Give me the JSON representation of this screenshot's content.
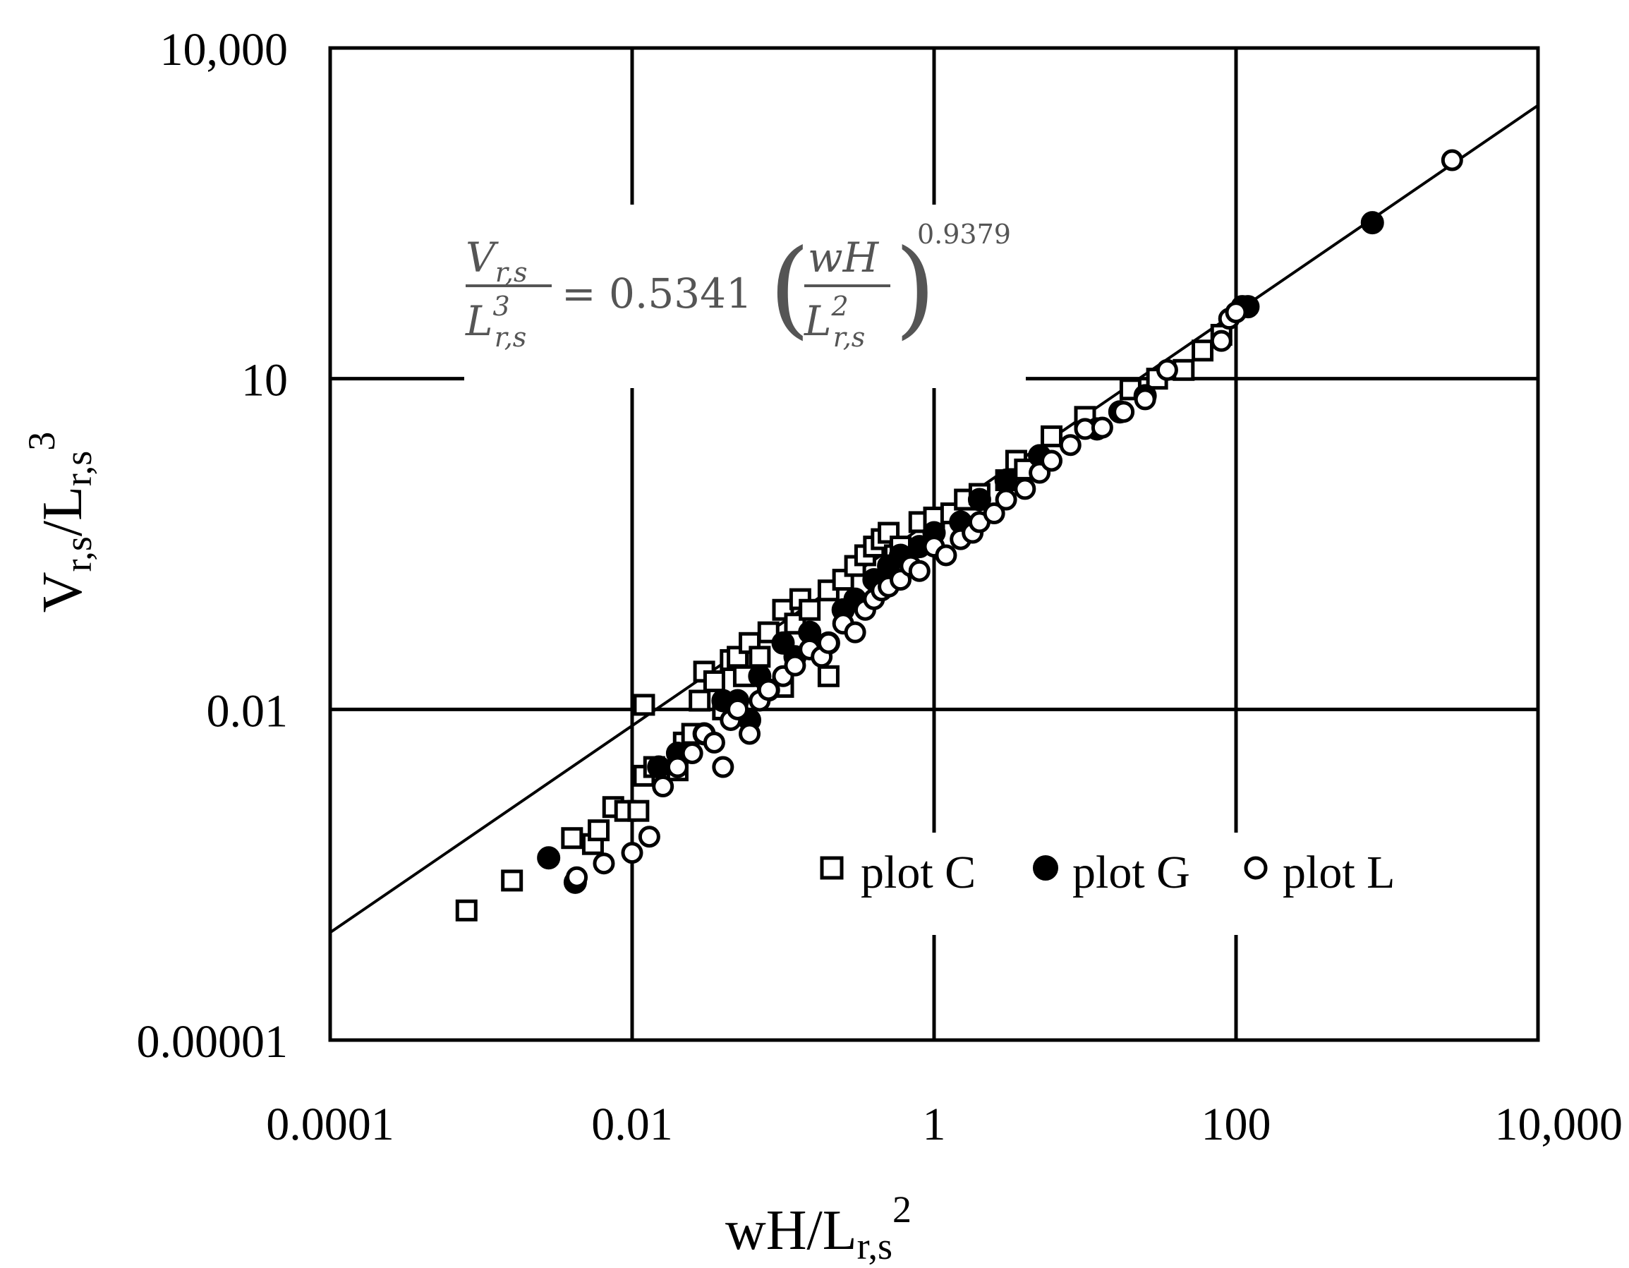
{
  "chart_data": {
    "type": "scatter",
    "x_scale": "log",
    "y_scale": "log",
    "xlim": [
      0.0001,
      10000
    ],
    "ylim": [
      1e-05,
      10000
    ],
    "x_ticks": [
      0.0001,
      0.01,
      1,
      100,
      10000
    ],
    "y_ticks": [
      1e-05,
      0.01,
      10,
      10000
    ],
    "x_tick_labels": [
      "0.0001",
      "0.01",
      "1",
      "100",
      "10,000"
    ],
    "y_tick_labels": [
      "0.00001",
      "0.01",
      "10",
      "10,000"
    ],
    "xlabel": {
      "main": "wH/L",
      "sub": "r,s",
      "sup": "2"
    },
    "ylabel": {
      "main": "V",
      "sub1": "r,s",
      "mid": "/L",
      "sub2": "r,s",
      "sup": "3"
    },
    "grid": true,
    "legend_position": "bottom-right",
    "fit_line": {
      "coefficient": 0.5341,
      "exponent": 0.9379
    },
    "equation": {
      "lhs_num": "V",
      "lhs_num_sub": "r,s",
      "lhs_den": "L",
      "lhs_den_sub": "r,s",
      "lhs_den_sup": "3",
      "equals": "= 0.5341",
      "inner_num": "wH",
      "inner_den": "L",
      "inner_den_sub": "r,s",
      "inner_den_sup": "2",
      "exponent": "0.9379"
    },
    "series": [
      {
        "name": "plot C",
        "marker": "square-open",
        "points": [
          [
            0.0008,
            0.00015
          ],
          [
            0.0016,
            0.00028
          ],
          [
            0.004,
            0.00068
          ],
          [
            0.0055,
            0.0006
          ],
          [
            0.006,
            0.0008
          ],
          [
            0.0075,
            0.0013
          ],
          [
            0.009,
            0.0012
          ],
          [
            0.011,
            0.0012
          ],
          [
            0.012,
            0.011
          ],
          [
            0.012,
            0.0025
          ],
          [
            0.014,
            0.003
          ],
          [
            0.02,
            0.0028
          ],
          [
            0.022,
            0.005
          ],
          [
            0.025,
            0.006
          ],
          [
            0.028,
            0.012
          ],
          [
            0.03,
            0.022
          ],
          [
            0.035,
            0.018
          ],
          [
            0.04,
            0.01
          ],
          [
            0.045,
            0.028
          ],
          [
            0.05,
            0.03
          ],
          [
            0.055,
            0.02
          ],
          [
            0.06,
            0.04
          ],
          [
            0.07,
            0.03
          ],
          [
            0.08,
            0.05
          ],
          [
            0.1,
            0.016
          ],
          [
            0.1,
            0.08
          ],
          [
            0.12,
            0.06
          ],
          [
            0.13,
            0.1
          ],
          [
            0.15,
            0.08
          ],
          [
            0.2,
            0.02
          ],
          [
            0.2,
            0.12
          ],
          [
            0.25,
            0.15
          ],
          [
            0.3,
            0.2
          ],
          [
            0.35,
            0.25
          ],
          [
            0.4,
            0.3
          ],
          [
            0.45,
            0.35
          ],
          [
            0.5,
            0.4
          ],
          [
            0.55,
            0.25
          ],
          [
            0.6,
            0.3
          ],
          [
            0.8,
            0.5
          ],
          [
            1.0,
            0.55
          ],
          [
            1.3,
            0.6
          ],
          [
            1.6,
            0.8
          ],
          [
            2.0,
            0.9
          ],
          [
            3.0,
            1.2
          ],
          [
            3.5,
            1.8
          ],
          [
            4.0,
            1.5
          ],
          [
            6.0,
            3.0
          ],
          [
            10.0,
            4.5
          ],
          [
            20.0,
            8.0
          ],
          [
            30.0,
            10.0
          ],
          [
            45.0,
            12.0
          ],
          [
            60.0,
            18.0
          ],
          [
            80.0,
            25.0
          ]
        ]
      },
      {
        "name": "plot G",
        "marker": "circle-filled",
        "points": [
          [
            0.0028,
            0.00045
          ],
          [
            0.0042,
            0.00027
          ],
          [
            0.015,
            0.003
          ],
          [
            0.02,
            0.004
          ],
          [
            0.03,
            0.006
          ],
          [
            0.04,
            0.012
          ],
          [
            0.05,
            0.012
          ],
          [
            0.06,
            0.008
          ],
          [
            0.07,
            0.02
          ],
          [
            0.08,
            0.015
          ],
          [
            0.1,
            0.04
          ],
          [
            0.12,
            0.03
          ],
          [
            0.15,
            0.05
          ],
          [
            0.2,
            0.04
          ],
          [
            0.25,
            0.08
          ],
          [
            0.3,
            0.1
          ],
          [
            0.4,
            0.15
          ],
          [
            0.5,
            0.2
          ],
          [
            0.6,
            0.25
          ],
          [
            0.8,
            0.3
          ],
          [
            1.0,
            0.4
          ],
          [
            1.5,
            0.5
          ],
          [
            2.0,
            0.8
          ],
          [
            3.0,
            1.2
          ],
          [
            5.0,
            2.0
          ],
          [
            12.0,
            3.5
          ],
          [
            17.0,
            5.0
          ],
          [
            25.0,
            7.0
          ],
          [
            110.0,
            45.0
          ],
          [
            120.0,
            45.0
          ],
          [
            800.0,
            260.0
          ]
        ]
      },
      {
        "name": "plot L",
        "marker": "circle-open",
        "points": [
          [
            0.0043,
            0.0003
          ],
          [
            0.0065,
            0.0004
          ],
          [
            0.01,
            0.0005
          ],
          [
            0.013,
            0.0007
          ],
          [
            0.016,
            0.002
          ],
          [
            0.02,
            0.003
          ],
          [
            0.025,
            0.004
          ],
          [
            0.03,
            0.006
          ],
          [
            0.035,
            0.005
          ],
          [
            0.04,
            0.003
          ],
          [
            0.045,
            0.008
          ],
          [
            0.05,
            0.01
          ],
          [
            0.06,
            0.006
          ],
          [
            0.07,
            0.012
          ],
          [
            0.08,
            0.015
          ],
          [
            0.1,
            0.02
          ],
          [
            0.12,
            0.025
          ],
          [
            0.15,
            0.035
          ],
          [
            0.18,
            0.03
          ],
          [
            0.2,
            0.04
          ],
          [
            0.25,
            0.06
          ],
          [
            0.3,
            0.05
          ],
          [
            0.35,
            0.08
          ],
          [
            0.4,
            0.1
          ],
          [
            0.45,
            0.12
          ],
          [
            0.5,
            0.13
          ],
          [
            0.6,
            0.15
          ],
          [
            0.7,
            0.2
          ],
          [
            0.8,
            0.18
          ],
          [
            1.0,
            0.3
          ],
          [
            1.2,
            0.25
          ],
          [
            1.5,
            0.35
          ],
          [
            1.8,
            0.4
          ],
          [
            2.0,
            0.5
          ],
          [
            2.5,
            0.6
          ],
          [
            3.0,
            0.8
          ],
          [
            4.0,
            1.0
          ],
          [
            5.0,
            1.4
          ],
          [
            6.0,
            1.8
          ],
          [
            8.0,
            2.5
          ],
          [
            10.0,
            3.5
          ],
          [
            13.0,
            3.6
          ],
          [
            18.0,
            5.0
          ],
          [
            25.0,
            6.5
          ],
          [
            35.0,
            12.0
          ],
          [
            80.0,
            22.0
          ],
          [
            90.0,
            35.0
          ],
          [
            100.0,
            40.0
          ],
          [
            2700.0,
            960.0
          ]
        ]
      }
    ]
  }
}
